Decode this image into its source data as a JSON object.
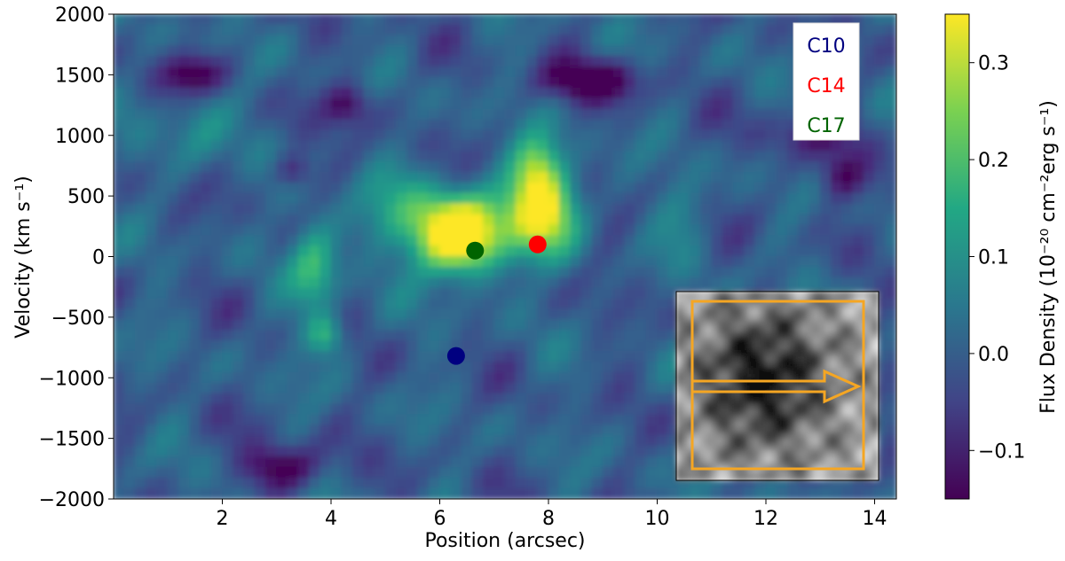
{
  "chart_data": {
    "type": "heatmap",
    "xlabel": "Position (arcsec)",
    "ylabel": "Velocity (km s⁻¹)",
    "xlim": [
      0,
      14.4
    ],
    "ylim": [
      -2000,
      2000
    ],
    "x_ticks": [
      2,
      4,
      6,
      8,
      10,
      12,
      14
    ],
    "x_tick_labels": [
      "2",
      "4",
      "6",
      "8",
      "10",
      "12",
      "14"
    ],
    "y_ticks": [
      2000,
      1500,
      1000,
      500,
      0,
      -500,
      -1000,
      -1500,
      -2000
    ],
    "y_tick_labels": [
      "2000",
      "1500",
      "1000",
      "500",
      "0",
      "−500",
      "−1000",
      "−1500",
      "−2000"
    ],
    "colorscale": "viridis",
    "colorbar": {
      "label": "Flux Density (10⁻²⁰ cm⁻²erg s⁻¹)",
      "range": [
        -0.15,
        0.35
      ],
      "ticks": [
        0.3,
        0.2,
        0.1,
        0.0,
        -0.1
      ],
      "tick_labels": [
        "0.3",
        "0.2",
        "0.1",
        "0.0",
        "−0.1"
      ]
    },
    "legend": {
      "position": "top-right",
      "entries": [
        {
          "label": "C10",
          "color": "#000080"
        },
        {
          "label": "C14",
          "color": "#ff0000"
        },
        {
          "label": "C17",
          "color": "#006400"
        }
      ]
    },
    "markers": [
      {
        "name": "C10",
        "x": 6.3,
        "y": -820,
        "color": "#000080"
      },
      {
        "name": "C14",
        "x": 7.8,
        "y": 100,
        "color": "#ff0000"
      },
      {
        "name": "C17",
        "x": 6.65,
        "y": 50,
        "color": "#006400"
      }
    ],
    "inset": {
      "position": "bottom-right",
      "description_colors": {
        "frame": "#f5a623",
        "image": "grayscale"
      }
    }
  }
}
